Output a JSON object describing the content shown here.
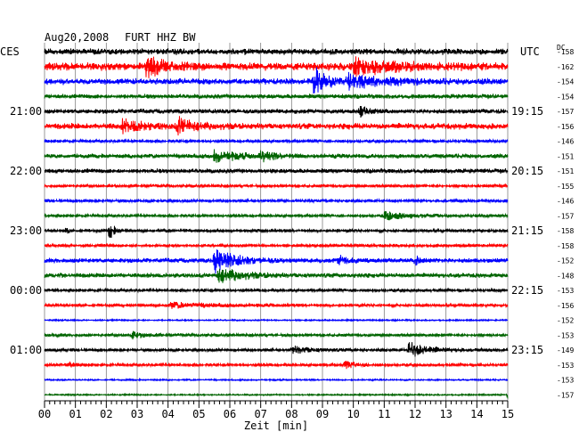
{
  "header": {
    "date": "Aug20,2008",
    "station": "FURT HHZ BW",
    "left_zone": "CES",
    "right_zone": "UTC",
    "dc_label": "DC"
  },
  "colors": {
    "trace_cycle": [
      "#000000",
      "#ff0000",
      "#0000ff",
      "#006400"
    ],
    "grid": "#808080",
    "frame": "#000000"
  },
  "chart_data": {
    "type": "line",
    "title": "",
    "xlabel": "Zeit [min]",
    "ylabel": "",
    "xlim": [
      0,
      15
    ],
    "x_ticks": [
      "00",
      "01",
      "02",
      "03",
      "04",
      "05",
      "06",
      "07",
      "08",
      "09",
      "10",
      "11",
      "12",
      "13",
      "14",
      "15"
    ],
    "grid": true,
    "left_time_labels": [
      {
        "row": 4,
        "label": "21:00"
      },
      {
        "row": 8,
        "label": "22:00"
      },
      {
        "row": 12,
        "label": "23:00"
      },
      {
        "row": 16,
        "label": "00:00"
      },
      {
        "row": 20,
        "label": "01:00"
      }
    ],
    "right_time_labels": [
      {
        "row": 4,
        "label": "19:15"
      },
      {
        "row": 8,
        "label": "20:15"
      },
      {
        "row": 12,
        "label": "21:15"
      },
      {
        "row": 16,
        "label": "22:15"
      },
      {
        "row": 20,
        "label": "23:15"
      }
    ],
    "dc_offsets": [
      -158,
      -162,
      -154,
      -154,
      -157,
      -156,
      -146,
      -151,
      -151,
      -155,
      -146,
      -157,
      -158,
      -158,
      -152,
      -148,
      -153,
      -156,
      -152,
      -153,
      -149,
      -153,
      -153,
      -157
    ],
    "traces": [
      {
        "row": 0,
        "base_amplitude": 4,
        "events": []
      },
      {
        "row": 1,
        "base_amplitude": 5,
        "events": [
          {
            "minute": 3.3,
            "amplitude": 11,
            "duration_min": 1.2
          },
          {
            "minute": 10.0,
            "amplitude": 8,
            "duration_min": 3.0
          }
        ]
      },
      {
        "row": 2,
        "base_amplitude": 4,
        "events": [
          {
            "minute": 8.7,
            "amplitude": 18,
            "duration_min": 0.8
          },
          {
            "minute": 9.8,
            "amplitude": 7,
            "duration_min": 2.5
          }
        ]
      },
      {
        "row": 3,
        "base_amplitude": 3,
        "events": []
      },
      {
        "row": 4,
        "base_amplitude": 3,
        "events": [
          {
            "minute": 10.2,
            "amplitude": 6,
            "duration_min": 0.6
          }
        ]
      },
      {
        "row": 5,
        "base_amplitude": 4,
        "events": [
          {
            "minute": 4.3,
            "amplitude": 9,
            "duration_min": 1.2
          },
          {
            "minute": 2.5,
            "amplitude": 6,
            "duration_min": 1.5
          }
        ]
      },
      {
        "row": 6,
        "base_amplitude": 2,
        "events": []
      },
      {
        "row": 7,
        "base_amplitude": 3,
        "events": [
          {
            "minute": 5.5,
            "amplitude": 7,
            "duration_min": 1.4
          },
          {
            "minute": 7.0,
            "amplitude": 5,
            "duration_min": 1.0
          }
        ]
      },
      {
        "row": 8,
        "base_amplitude": 3,
        "events": []
      },
      {
        "row": 9,
        "base_amplitude": 2,
        "events": []
      },
      {
        "row": 10,
        "base_amplitude": 2,
        "events": []
      },
      {
        "row": 11,
        "base_amplitude": 2,
        "events": [
          {
            "minute": 11.0,
            "amplitude": 4,
            "duration_min": 2.0
          }
        ]
      },
      {
        "row": 12,
        "base_amplitude": 2,
        "events": [
          {
            "minute": 2.1,
            "amplitude": 10,
            "duration_min": 0.35
          },
          {
            "minute": 0.7,
            "amplitude": 4,
            "duration_min": 0.2
          }
        ]
      },
      {
        "row": 13,
        "base_amplitude": 2,
        "events": []
      },
      {
        "row": 14,
        "base_amplitude": 3,
        "events": [
          {
            "minute": 5.5,
            "amplitude": 14,
            "duration_min": 1.4
          },
          {
            "minute": 9.5,
            "amplitude": 6,
            "duration_min": 0.7
          },
          {
            "minute": 12.0,
            "amplitude": 5,
            "duration_min": 0.5
          }
        ]
      },
      {
        "row": 15,
        "base_amplitude": 3,
        "events": [
          {
            "minute": 5.6,
            "amplitude": 9,
            "duration_min": 1.6
          }
        ]
      },
      {
        "row": 16,
        "base_amplitude": 2,
        "events": []
      },
      {
        "row": 17,
        "base_amplitude": 2,
        "events": [
          {
            "minute": 4.0,
            "amplitude": 3,
            "duration_min": 3.0
          }
        ]
      },
      {
        "row": 18,
        "base_amplitude": 1,
        "events": []
      },
      {
        "row": 19,
        "base_amplitude": 2,
        "events": [
          {
            "minute": 2.8,
            "amplitude": 4,
            "duration_min": 0.8
          }
        ]
      },
      {
        "row": 20,
        "base_amplitude": 2,
        "events": [
          {
            "minute": 11.8,
            "amplitude": 9,
            "duration_min": 1.3
          },
          {
            "minute": 8.0,
            "amplitude": 4,
            "duration_min": 1.5
          }
        ]
      },
      {
        "row": 21,
        "base_amplitude": 2,
        "events": [
          {
            "minute": 9.7,
            "amplitude": 5,
            "duration_min": 0.6
          },
          {
            "minute": 0.8,
            "amplitude": 3,
            "duration_min": 0.4
          }
        ]
      },
      {
        "row": 22,
        "base_amplitude": 1,
        "events": []
      },
      {
        "row": 23,
        "base_amplitude": 1,
        "events": [
          {
            "minute": 15.0,
            "amplitude": 4,
            "duration_min": 0.3
          }
        ]
      }
    ]
  }
}
